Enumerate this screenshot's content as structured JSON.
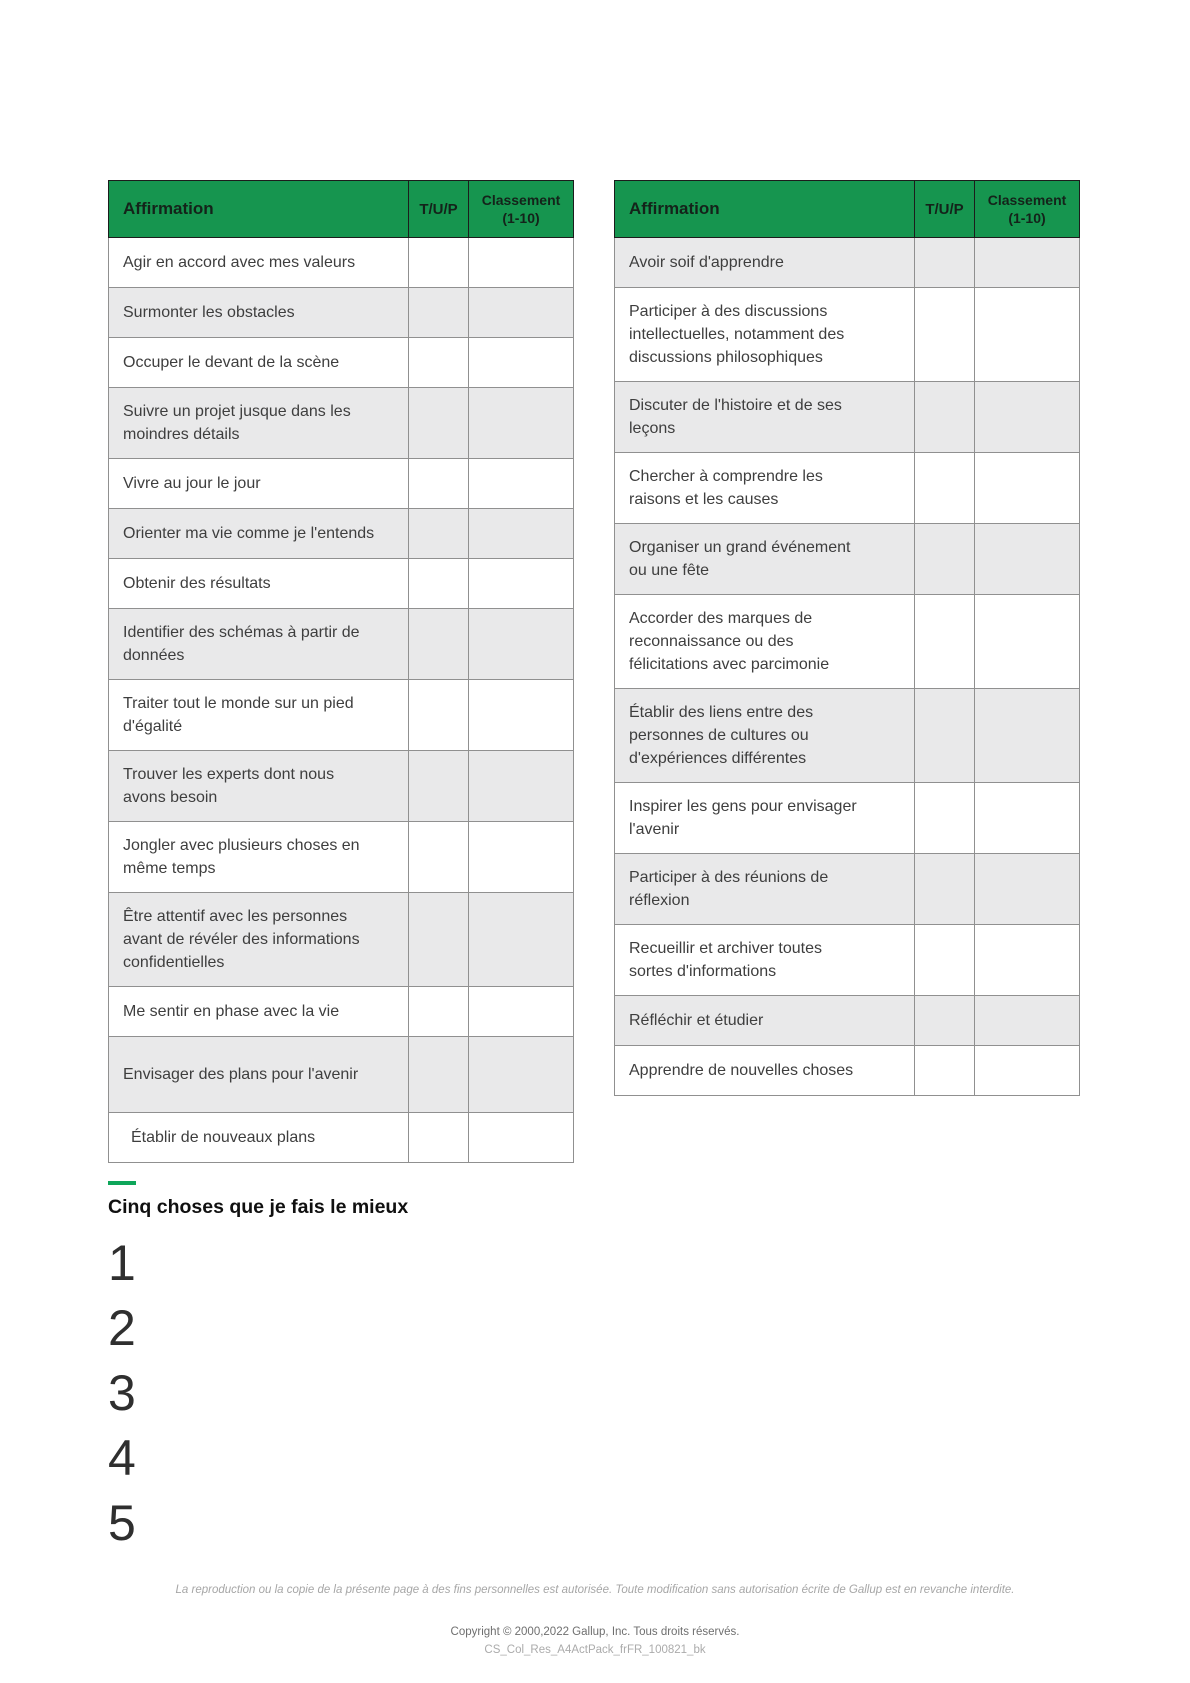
{
  "colors": {
    "header_green": "#16954f",
    "accent_green": "#0ea65a",
    "row_shade": "#e9e9ea"
  },
  "tables": [
    {
      "headers": {
        "affirmation": "Affirmation",
        "tup": "T/U/P",
        "classement_line1": "Classement",
        "classement_line2": "(1-10)"
      },
      "rows": [
        {
          "label": "Agir en accord avec mes valeurs",
          "shaded": false
        },
        {
          "label": "Surmonter les obstacles",
          "shaded": true
        },
        {
          "label": "Occuper le devant de la scène",
          "shaded": false
        },
        {
          "label": "Suivre un projet jusque dans les\nmoindres détails",
          "shaded": true
        },
        {
          "label": "Vivre au jour le jour",
          "shaded": false
        },
        {
          "label": "Orienter ma vie comme je l'entends",
          "shaded": true
        },
        {
          "label": "Obtenir des résultats",
          "shaded": false
        },
        {
          "label": "Identifier des schémas à partir de\ndonnées",
          "shaded": true
        },
        {
          "label": "Traiter tout le monde sur un pied\nd'égalité",
          "shaded": false
        },
        {
          "label": "Trouver les experts dont nous\navons besoin",
          "shaded": true
        },
        {
          "label": "Jongler avec plusieurs choses en\nmême temps",
          "shaded": false
        },
        {
          "label": "Être attentif avec les personnes\navant de révéler des informations\nconfidentielles",
          "shaded": true
        },
        {
          "label": "Me sentir en phase avec la vie",
          "shaded": false
        },
        {
          "label": "Envisager des plans pour l'avenir",
          "shaded": true,
          "tall": true
        },
        {
          "label": "Établir de nouveaux plans",
          "shaded": false,
          "indent": true
        }
      ]
    },
    {
      "headers": {
        "affirmation": "Affirmation",
        "tup": "T/U/P",
        "classement_line1": "Classement",
        "classement_line2": "(1-10)"
      },
      "rows": [
        {
          "label": "Avoir soif d'apprendre",
          "shaded": true
        },
        {
          "label": "Participer à des discussions\nintellectuelles, notamment des\ndiscussions philosophiques",
          "shaded": false
        },
        {
          "label": "Discuter de l'histoire et de ses\nleçons",
          "shaded": true
        },
        {
          "label": "Chercher à comprendre les\nraisons et les causes",
          "shaded": false
        },
        {
          "label": "Organiser un grand événement\nou une fête",
          "shaded": true
        },
        {
          "label": "Accorder des marques de\nreconnaissance ou des\nfélicitations avec parcimonie",
          "shaded": false
        },
        {
          "label": "Établir des liens entre des\npersonnes de cultures ou\nd'expériences différentes",
          "shaded": true
        },
        {
          "label": "Inspirer les gens pour envisager\nl'avenir",
          "shaded": false
        },
        {
          "label": "Participer à des réunions de\nréflexion",
          "shaded": true
        },
        {
          "label": "Recueillir et archiver toutes\nsortes d'informations",
          "shaded": false
        },
        {
          "label": "Réfléchir et étudier",
          "shaded": true
        },
        {
          "label": "Apprendre de nouvelles choses",
          "shaded": false
        }
      ]
    }
  ],
  "best_five": {
    "title": "Cinq choses que je fais le mieux",
    "numbers": [
      "1",
      "2",
      "3",
      "4",
      "5"
    ]
  },
  "footer": {
    "permission": "La reproduction ou la copie de la présente page à des fins personnelles est autorisée. Toute modification sans autorisation écrite de Gallup est en revanche interdite.",
    "copyright": "Copyright © 2000,2022 Gallup, Inc. Tous droits réservés.",
    "doc_code": "CS_Col_Res_A4ActPack_frFR_100821_bk"
  }
}
